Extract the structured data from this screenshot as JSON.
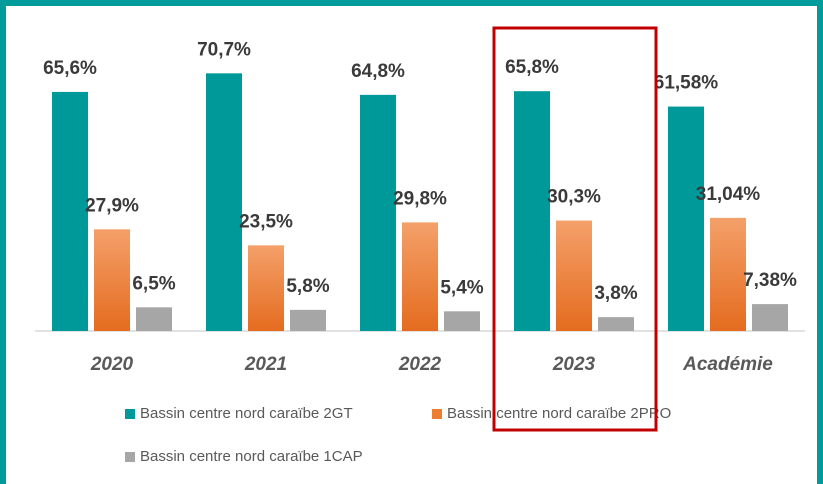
{
  "chart_data": {
    "type": "bar",
    "categories": [
      "2020",
      "2021",
      "2022",
      "2023",
      "Académie"
    ],
    "series": [
      {
        "name": "Bassin centre nord caraïbe 2GT",
        "color": "#009999",
        "values": [
          65.6,
          70.7,
          64.8,
          65.8,
          61.58
        ],
        "value_labels": [
          "65,6%",
          "70,7%",
          "64,8%",
          "65,8%",
          "61,58%"
        ]
      },
      {
        "name": "Bassin centre nord caraïbe 2PRO",
        "color": "#ed7d31",
        "values": [
          27.9,
          23.5,
          29.8,
          30.3,
          31.04
        ],
        "value_labels": [
          "27,9%",
          "23,5%",
          "29,8%",
          "30,3%",
          "31,04%"
        ]
      },
      {
        "name": "Bassin centre nord caraïbe 1CAP",
        "color": "#a6a6a6",
        "values": [
          6.5,
          5.8,
          5.4,
          3.8,
          7.38
        ],
        "value_labels": [
          "6,5%",
          "5,8%",
          "5,4%",
          "3,8%",
          "7,38%"
        ]
      }
    ],
    "ylim": [
      0,
      90
    ],
    "grid": false
  }
}
